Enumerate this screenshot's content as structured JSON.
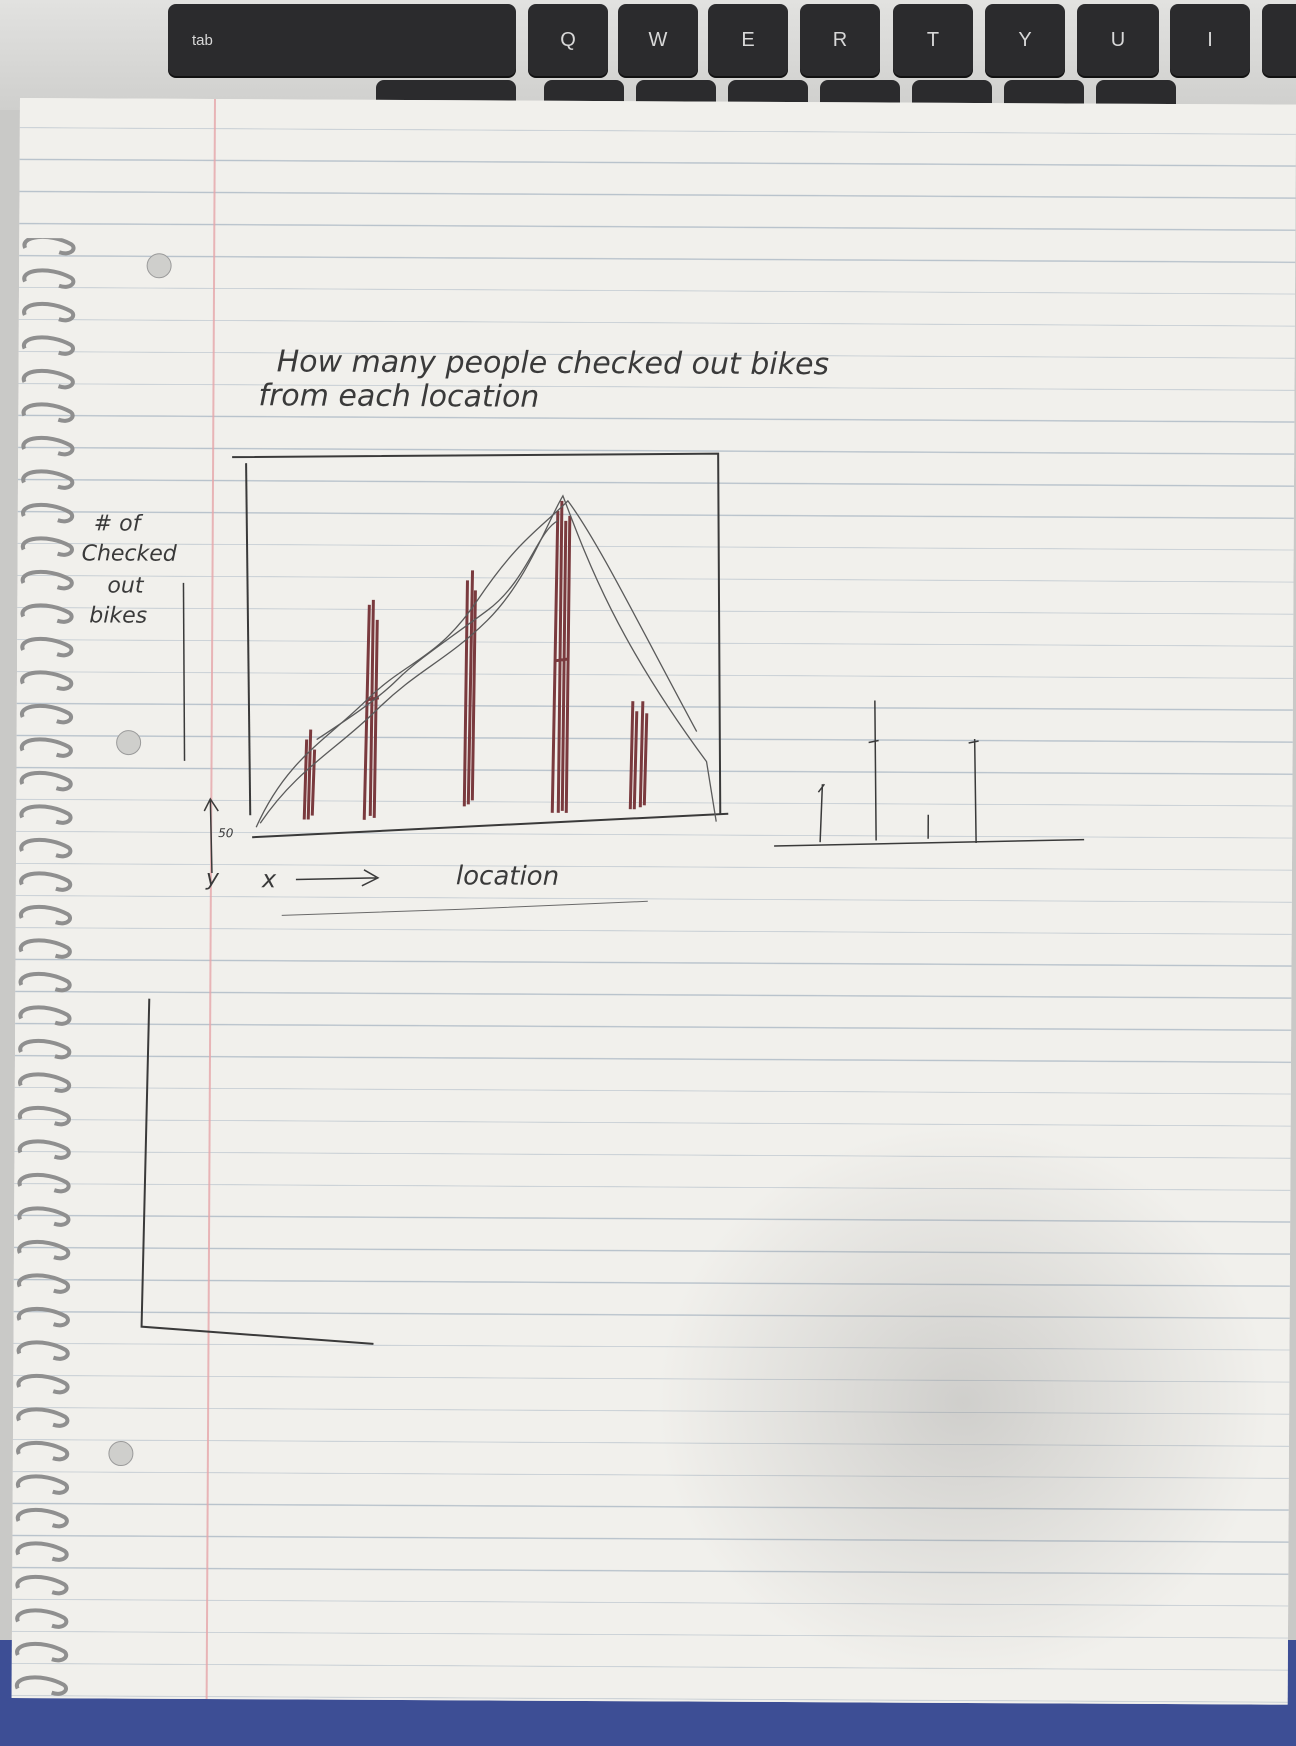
{
  "keyboard": {
    "keys": [
      "tab",
      "Q",
      "W",
      "E",
      "R",
      "T",
      "Y",
      "U",
      "I"
    ]
  },
  "sketch": {
    "title_line1": "How many people checked out bikes",
    "title_line2": "from each location",
    "y_label": [
      "# of",
      "Checked",
      "out",
      "bikes"
    ],
    "y_marker": "y",
    "y_tick": "50",
    "x_marker": "x",
    "x_label": "location"
  },
  "colors": {
    "pencil": "#3a3a3a",
    "red_pen": "#7a3a3e",
    "paper": "#f1f0ec",
    "notebook_cover": "#3d4e95"
  }
}
